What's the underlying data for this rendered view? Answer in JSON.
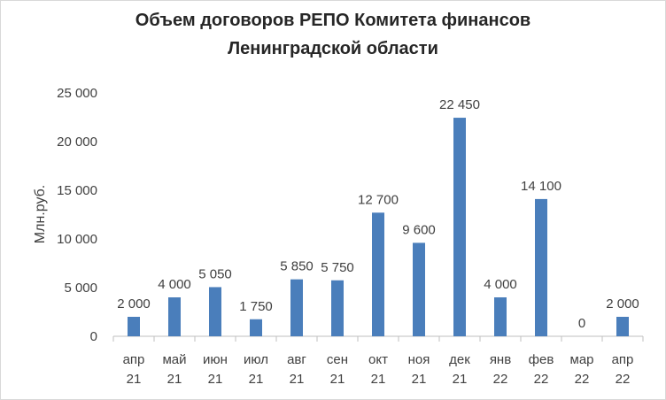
{
  "chart_data": {
    "type": "bar",
    "title": [
      "Объем  договоров РЕПО Комитета финансов",
      "Ленинградской области"
    ],
    "ylabel": "Млн.руб.",
    "xlabel": "",
    "ylim": [
      0,
      25000
    ],
    "yticks": [
      0,
      5000,
      10000,
      15000,
      20000,
      25000
    ],
    "ytick_labels": [
      "0",
      "5 000",
      "10 000",
      "15 000",
      "20 000",
      "25 000"
    ],
    "categories": [
      [
        "апр",
        "21"
      ],
      [
        "май",
        "21"
      ],
      [
        "июн",
        "21"
      ],
      [
        "июл",
        "21"
      ],
      [
        "авг",
        "21"
      ],
      [
        "сен",
        "21"
      ],
      [
        "окт",
        "21"
      ],
      [
        "ноя",
        "21"
      ],
      [
        "дек",
        "21"
      ],
      [
        "янв",
        "22"
      ],
      [
        "фев",
        "22"
      ],
      [
        "мар",
        "22"
      ],
      [
        "апр",
        "22"
      ]
    ],
    "values": [
      2000,
      4000,
      5050,
      1750,
      5850,
      5750,
      12700,
      9600,
      22450,
      4000,
      14100,
      0,
      2000
    ],
    "data_labels": [
      "2 000",
      "4 000",
      "5 050",
      "1 750",
      "5 850",
      "5 750",
      "12 700",
      "9 600",
      "22 450",
      "4 000",
      "14 100",
      "0",
      "2 000"
    ],
    "bar_color": "#4a7ebb",
    "grid": false,
    "legend": "none"
  }
}
